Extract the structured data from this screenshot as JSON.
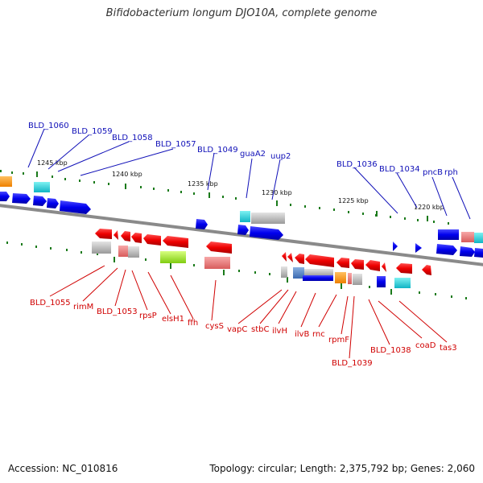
{
  "title": "Bifidobacterium longum DJO10A, complete genome",
  "accession": "Accession: NC_010816",
  "summary": "Topology: circular; Length: 2,375,792 bp; Genes: 2,060",
  "ticks": [
    "1245 kbp",
    "1240 kbp",
    "1235 kbp",
    "1230 kbp",
    "1225 kbp",
    "1220 kbp"
  ],
  "plus_labels": [
    "BLD_1060",
    "BLD_1059",
    "BLD_1058",
    "BLD_1057",
    "BLD_1049",
    "guaA2",
    "uup2",
    "BLD_1036",
    "BLD_1034",
    "pncB",
    "rph"
  ],
  "minus_labels": [
    "BLD_1055",
    "rimM",
    "BLD_1053",
    "rpsP",
    "elsH1",
    "ffh",
    "cysS",
    "vapC",
    "stbC",
    "ilvH",
    "ilvB",
    "rnc",
    "rpmF",
    "BLD_1039",
    "BLD_1038",
    "coaD",
    "tas3"
  ],
  "colors": {
    "plus": "#1010b8",
    "minus": "#d00000",
    "gene_blue": "#0000ee",
    "gene_red": "#ee0000",
    "backbone": "#777777",
    "tick": "#1a7a1a"
  }
}
